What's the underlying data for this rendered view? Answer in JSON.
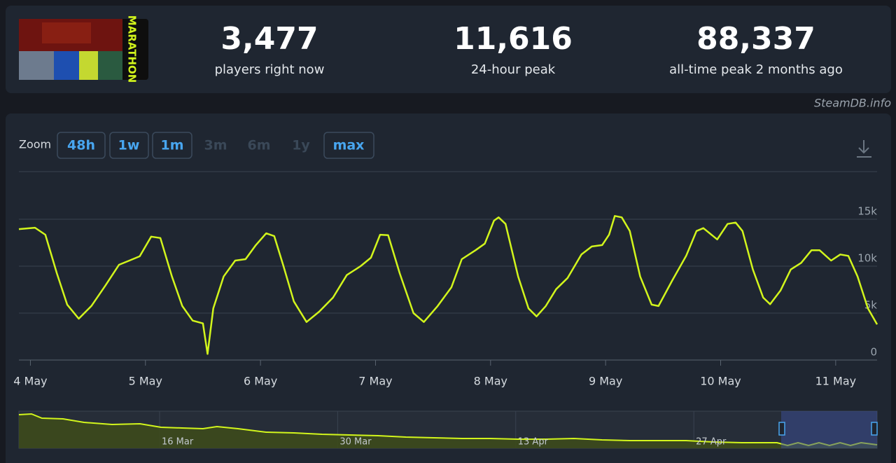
{
  "game": {
    "logo_text": "MARATHON"
  },
  "stats": [
    {
      "value": "3,477",
      "label": "players right now"
    },
    {
      "value": "11,616",
      "label": "24-hour peak"
    },
    {
      "value": "88,337",
      "label": "all-time peak 2 months ago"
    }
  ],
  "watermark": "SteamDB.info",
  "zoom": {
    "label": "Zoom",
    "buttons": [
      {
        "label": "48h",
        "enabled": true
      },
      {
        "label": "1w",
        "enabled": true
      },
      {
        "label": "1m",
        "enabled": true
      },
      {
        "label": "3m",
        "enabled": false
      },
      {
        "label": "6m",
        "enabled": false
      },
      {
        "label": "1y",
        "enabled": false
      },
      {
        "label": "max",
        "enabled": true
      }
    ]
  },
  "chart_data": [
    {
      "type": "line",
      "color": "#d2f51c",
      "grid": true,
      "x": [
        -0.1,
        0.04,
        0.13,
        0.23,
        0.32,
        0.42,
        0.53,
        0.65,
        0.77,
        0.86,
        0.95,
        1.05,
        1.13,
        1.23,
        1.32,
        1.41,
        1.5,
        1.54,
        1.59,
        1.68,
        1.78,
        1.87,
        1.96,
        2.05,
        2.12,
        2.2,
        2.29,
        2.4,
        2.51,
        2.63,
        2.75,
        2.87,
        2.96,
        3.04,
        3.11,
        3.21,
        3.33,
        3.42,
        3.54,
        3.66,
        3.75,
        3.87,
        3.95,
        4.03,
        4.07,
        4.13,
        4.24,
        4.33,
        4.4,
        4.48,
        4.57,
        4.67,
        4.79,
        4.88,
        4.97,
        5.03,
        5.08,
        5.14,
        5.21,
        5.3,
        5.4,
        5.46,
        5.58,
        5.7,
        5.79,
        5.85,
        5.97,
        6.06,
        6.13,
        6.19,
        6.28,
        6.37,
        6.43,
        6.52,
        6.61,
        6.7,
        6.79,
        6.86,
        6.96,
        7.04,
        7.11,
        7.19,
        7.28,
        7.36
      ],
      "values": [
        13950,
        14100,
        13350,
        9250,
        5900,
        4400,
        5750,
        7900,
        10150,
        10600,
        11050,
        13150,
        13000,
        8900,
        5750,
        4200,
        3900,
        650,
        5500,
        8900,
        10600,
        10750,
        12250,
        13500,
        13200,
        10000,
        6250,
        4050,
        5150,
        6650,
        9050,
        10000,
        10900,
        13350,
        13300,
        9250,
        5000,
        4050,
        5750,
        7750,
        10750,
        11700,
        12400,
        14850,
        15200,
        14500,
        8900,
        5500,
        4650,
        5750,
        7550,
        8750,
        11250,
        12100,
        12250,
        13350,
        15350,
        15200,
        13750,
        8900,
        5900,
        5750,
        8500,
        11100,
        13750,
        14050,
        12850,
        14500,
        14650,
        13750,
        9650,
        6650,
        5950,
        7400,
        9650,
        10350,
        11700,
        11700,
        10600,
        11250,
        11100,
        8900,
        5500,
        3800
      ],
      "xlim": [
        -0.1,
        7.36
      ],
      "xticks": [
        {
          "value": 0,
          "label": "4 May"
        },
        {
          "value": 1,
          "label": "5 May"
        },
        {
          "value": 2,
          "label": "6 May"
        },
        {
          "value": 3,
          "label": "7 May"
        },
        {
          "value": 4,
          "label": "8 May"
        },
        {
          "value": 5,
          "label": "9 May"
        },
        {
          "value": 6,
          "label": "10 May"
        },
        {
          "value": 7,
          "label": "11 May"
        }
      ],
      "ylim": [
        0,
        20000
      ],
      "yticks": [
        0,
        {
          "value": 5000,
          "label": "5k"
        },
        {
          "value": 10000,
          "label": "10k"
        },
        {
          "value": 15000,
          "label": "15k"
        }
      ]
    },
    {
      "type": "area",
      "color": "#d2f51c",
      "x": [
        -11.06,
        -10.07,
        -9.25,
        -7.59,
        -5.94,
        -3.74,
        -1.54,
        0.11,
        1.76,
        3.41,
        4.51,
        6.16,
        8.37,
        10.57,
        12.77,
        14.97,
        17.17,
        19.37,
        21.57,
        23.78,
        25.98,
        28.18,
        30.38,
        32.58,
        34.78,
        36.98,
        39.19,
        41.39,
        43.59,
        45.79,
        48.54,
        49.37,
        50.19,
        51.02,
        51.84,
        52.67,
        53.5,
        54.32,
        55.15,
        56.41
      ],
      "values": [
        81500,
        83200,
        73000,
        71300,
        62800,
        57700,
        59400,
        50900,
        49200,
        47500,
        52600,
        47500,
        39100,
        37400,
        34000,
        32300,
        30600,
        27200,
        25500,
        23800,
        23800,
        22100,
        22100,
        23800,
        20400,
        18700,
        18700,
        18700,
        15300,
        13600,
        13600,
        6800,
        13600,
        6800,
        13600,
        6800,
        13600,
        6800,
        13600,
        8500
      ],
      "xlim": [
        -11.06,
        56.41
      ],
      "xticks": [
        {
          "value": 0,
          "label": "16 Mar"
        },
        {
          "value": 14,
          "label": "30 Mar"
        },
        {
          "value": 28,
          "label": "13 Apr"
        },
        {
          "value": 42,
          "label": "27 Apr"
        }
      ],
      "ylim": [
        0,
        90000
      ]
    }
  ]
}
